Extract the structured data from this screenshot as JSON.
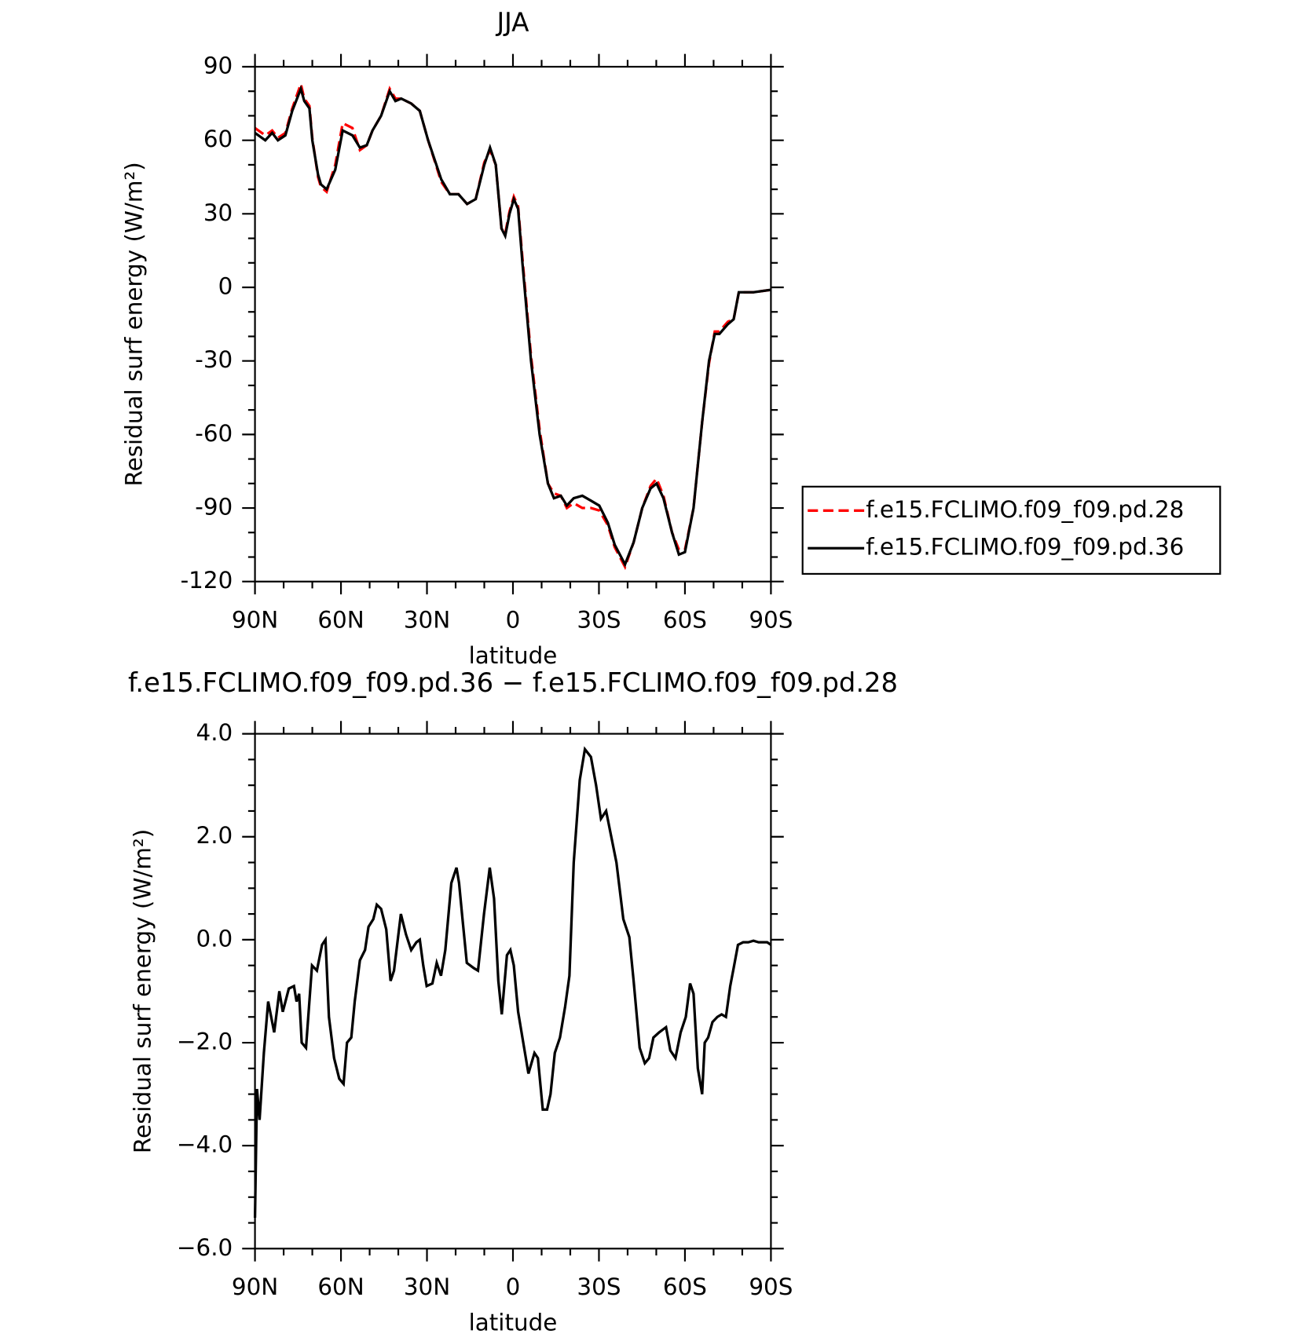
{
  "chart_data": [
    {
      "type": "line",
      "title": "JJA",
      "xlabel": "latitude",
      "ylabel": "Residual surf energy (W/m²)",
      "xlim": [
        90,
        -90
      ],
      "ylim": [
        -120,
        90
      ],
      "xticks": [
        {
          "value": 90,
          "label": "90N"
        },
        {
          "value": 60,
          "label": "60N"
        },
        {
          "value": 30,
          "label": "30N"
        },
        0,
        {
          "value": -30,
          "label": "30S"
        },
        {
          "value": -60,
          "label": "60S"
        },
        {
          "value": -90,
          "label": "90S"
        }
      ],
      "yticks": [
        90,
        60,
        30,
        0,
        -30,
        -60,
        -90,
        -120
      ],
      "legend": "right",
      "x": [
        90,
        86.4,
        84,
        82,
        79.4,
        77,
        74,
        72.8,
        71,
        70,
        68,
        67,
        65,
        62,
        59.4,
        56,
        53.4,
        51,
        49,
        46,
        43,
        41,
        39,
        35.5,
        32.5,
        29.6,
        25,
        22,
        19,
        16,
        13,
        10,
        8,
        6,
        4,
        2.7,
        1.2,
        -0.3,
        -1.8,
        -3.3,
        -6.3,
        -9.3,
        -12.2,
        -14.3,
        -16.7,
        -18.8,
        -21.2,
        -24.2,
        -27.2,
        -30.1,
        -33.1,
        -35.5,
        -39.1,
        -42.1,
        -45.1,
        -48,
        -50.1,
        -52.5,
        -55.5,
        -57.9,
        -60,
        -63,
        -66,
        -68.4,
        -70.4,
        -72,
        -75,
        -77,
        -78.8,
        -83.9,
        -90
      ],
      "series": [
        {
          "name": "f.e15.FCLIMO.f09_f09.pd.28",
          "color": "#ff0000",
          "style": "dashed",
          "values": [
            65,
            62,
            64,
            61,
            63,
            73,
            83,
            77,
            74,
            61,
            45,
            41,
            39,
            50,
            67,
            65,
            56,
            58,
            64,
            70,
            81,
            77,
            77,
            75,
            72,
            60,
            43,
            38,
            38,
            34,
            36,
            51,
            56,
            50,
            24,
            22,
            31,
            37,
            33,
            12,
            -28,
            -58,
            -80,
            -84,
            -85,
            -90,
            -88,
            -90,
            -90,
            -91,
            -97,
            -106,
            -114,
            -104,
            -90,
            -81,
            -78,
            -85,
            -100,
            -107,
            -107,
            -90,
            -55,
            -31,
            -18,
            -18,
            -14,
            -13,
            -2,
            -2,
            -1
          ]
        },
        {
          "name": "f.e15.FCLIMO.f09_f09.pd.36",
          "color": "#000000",
          "style": "solid",
          "values": [
            63,
            60,
            63,
            60,
            62,
            72,
            81,
            76,
            73,
            60,
            46,
            42,
            40,
            48,
            64,
            62,
            57,
            58,
            64,
            70,
            80,
            76,
            77,
            75,
            72,
            60,
            44,
            38,
            38,
            34,
            36,
            50,
            57,
            50,
            24,
            21,
            30,
            36,
            32,
            10,
            -30,
            -60,
            -80,
            -86,
            -85,
            -89,
            -86,
            -85,
            -87,
            -89,
            -96,
            -105,
            -113,
            -104,
            -90,
            -82,
            -80,
            -86,
            -100,
            -109,
            -108,
            -90,
            -55,
            -30,
            -19,
            -19,
            -15,
            -13,
            -2,
            -2,
            -1
          ]
        }
      ]
    },
    {
      "type": "line",
      "title": "f.e15.FCLIMO.f09_f09.pd.36 − f.e15.FCLIMO.f09_f09.pd.28",
      "xlabel": "latitude",
      "ylabel": "Residual surf energy (W/m²)",
      "xlim": [
        90,
        -90
      ],
      "ylim": [
        -6,
        4
      ],
      "xticks": [
        {
          "value": 90,
          "label": "90N"
        },
        {
          "value": 60,
          "label": "60N"
        },
        {
          "value": 30,
          "label": "30N"
        },
        0,
        {
          "value": -30,
          "label": "30S"
        },
        {
          "value": -60,
          "label": "60S"
        },
        {
          "value": -90,
          "label": "90S"
        }
      ],
      "yticks": [
        {
          "value": 4,
          "label": "4.0"
        },
        {
          "value": 2,
          "label": "2.0"
        },
        {
          "value": 0,
          "label": "0.0"
        },
        {
          "value": -2,
          "label": "−2.0"
        },
        {
          "value": -4,
          "label": "−4.0"
        },
        {
          "value": -6,
          "label": "−6.0"
        }
      ],
      "x": [
        90,
        89.3,
        88.4,
        86.9,
        85.4,
        83.3,
        81.5,
        80.3,
        78.2,
        76.4,
        75.5,
        74.6,
        73.7,
        72.2,
        70.1,
        68.4,
        66.6,
        65.4,
        64.2,
        62.4,
        60.6,
        59.1,
        57.9,
        56.4,
        55.2,
        53.4,
        51.6,
        50.4,
        48.7,
        47.5,
        46,
        44.2,
        42.7,
        41.5,
        39.1,
        37.3,
        35.5,
        33.7,
        32.5,
        31.3,
        30.1,
        28.1,
        26.6,
        25.1,
        23.6,
        21.5,
        19.7,
        18.8,
        17.6,
        16.1,
        13.7,
        12.2,
        10.1,
        8.1,
        6.6,
        5.1,
        3.9,
        2.1,
        0.9,
        -0.3,
        -1.8,
        -3.9,
        -5.4,
        -7.5,
        -8.7,
        -10.4,
        -11.9,
        -13.1,
        -14.6,
        -16.4,
        -18.2,
        -19.7,
        -21.2,
        -23.3,
        -25.1,
        -27.2,
        -29,
        -30.7,
        -32.5,
        -36.1,
        -38.5,
        -40.6,
        -42.1,
        -44.2,
        -46,
        -47.5,
        -49,
        -51,
        -53.4,
        -54.9,
        -56.7,
        -58.5,
        -60.3,
        -61.8,
        -63,
        -64.5,
        -66,
        -66.9,
        -68.1,
        -69.6,
        -71.3,
        -72.8,
        -74.3,
        -75.8,
        -77,
        -78.5,
        -80.3,
        -82.1,
        -83.9,
        -85.7,
        -88.7,
        -90
      ],
      "series": [
        {
          "color": "#000000",
          "style": "solid",
          "values": [
            -5.4,
            -2.9,
            -3.5,
            -2.2,
            -1.2,
            -1.8,
            -1,
            -1.4,
            -0.95,
            -0.9,
            -1.2,
            -1.05,
            -2,
            -2.1,
            -0.5,
            -0.6,
            -0.1,
            0,
            -1.5,
            -2.3,
            -2.7,
            -2.8,
            -2,
            -1.9,
            -1.2,
            -0.4,
            -0.2,
            0.25,
            0.4,
            0.68,
            0.6,
            0.2,
            -0.8,
            -0.6,
            0.5,
            0.1,
            -0.2,
            -0.05,
            0,
            -0.5,
            -0.9,
            -0.85,
            -0.45,
            -0.7,
            -0.2,
            1.1,
            1.4,
            1.1,
            0.4,
            -0.45,
            -0.55,
            -0.6,
            0.5,
            1.4,
            0.8,
            -0.8,
            -1.45,
            -0.3,
            -0.2,
            -0.5,
            -1.4,
            -2.1,
            -2.6,
            -2.2,
            -2.3,
            -3.3,
            -3.3,
            -3,
            -2.2,
            -1.9,
            -1.3,
            -0.7,
            1.5,
            3.1,
            3.7,
            3.55,
            3,
            2.35,
            2.5,
            1.5,
            0.4,
            0.05,
            -0.8,
            -2.1,
            -2.4,
            -2.3,
            -1.9,
            -1.8,
            -1.7,
            -2.15,
            -2.3,
            -1.8,
            -1.5,
            -0.85,
            -1.05,
            -2.5,
            -3,
            -2,
            -1.9,
            -1.6,
            -1.5,
            -1.45,
            -1.5,
            -0.9,
            -0.55,
            -0.1,
            -0.05,
            -0.05,
            -0.02,
            -0.05,
            -0.05,
            -0.1
          ]
        }
      ]
    }
  ]
}
